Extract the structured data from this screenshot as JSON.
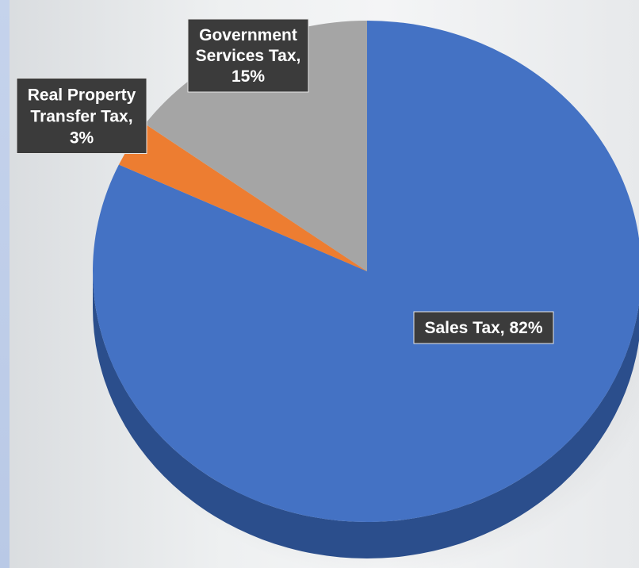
{
  "chart_data": {
    "type": "pie",
    "title": "",
    "slices": [
      {
        "label": "Sales Tax",
        "value": 82,
        "display": "Sales Tax, 82%",
        "color": "#4472c4",
        "side_color": "#2b4e8c"
      },
      {
        "label": "Real Property Transfer Tax",
        "value": 3,
        "display": "Real Property Transfer Tax, 3%",
        "color": "#ed7d31",
        "side_color": "#a8541c"
      },
      {
        "label": "Government Services Tax",
        "value": 15,
        "display": "Government Services Tax, 15%",
        "color": "#a5a5a5",
        "side_color": "#777777"
      }
    ],
    "label_lines": [
      [
        "Sales Tax, 82%"
      ],
      [
        "Real Property",
        "Transfer Tax,",
        "3%"
      ],
      [
        "Government",
        "Services Tax,",
        "15%"
      ]
    ],
    "legend": "none",
    "style": "3d-pie"
  }
}
